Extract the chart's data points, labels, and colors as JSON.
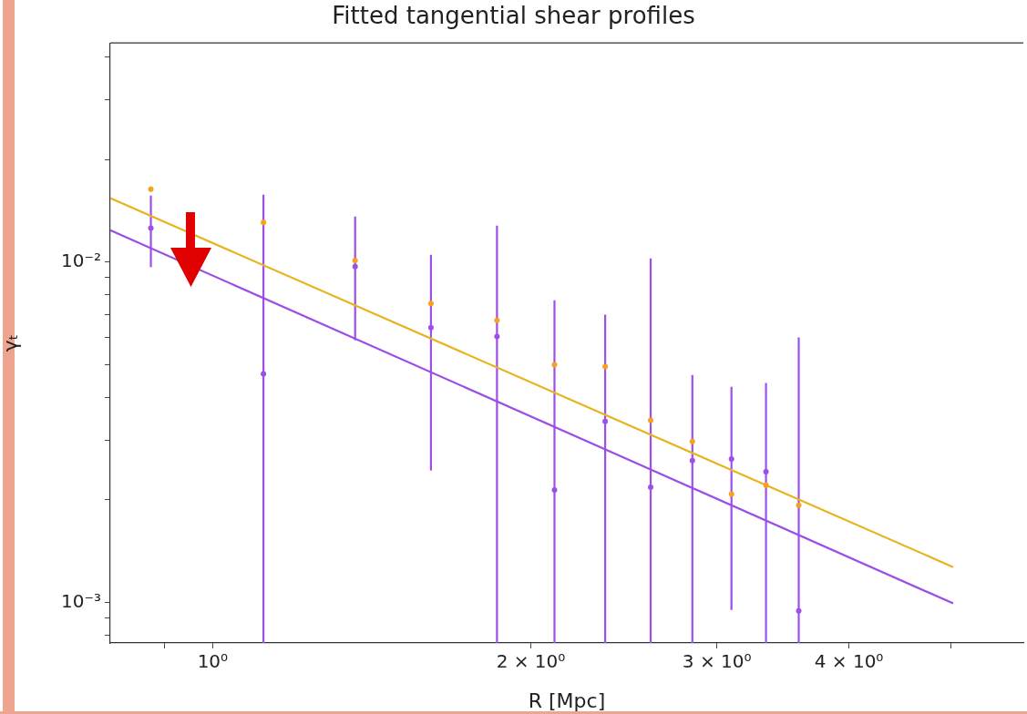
{
  "chart_data": {
    "type": "scatter",
    "title": "Fitted tangential shear profiles",
    "xlabel": "R [Mpc]",
    "ylabel": "γₜ",
    "log": "xy",
    "marker": "circle",
    "xlim": [
      0.8,
      5.85
    ],
    "ylim": [
      0.00076,
      0.044
    ],
    "xticks": [
      {
        "value": 0.9,
        "label": null
      },
      {
        "value": 1,
        "label": "10⁰"
      },
      {
        "value": 2,
        "label": "2 × 10⁰"
      },
      {
        "value": 3,
        "label": "3 × 10⁰"
      },
      {
        "value": 4,
        "label": "4 × 10⁰"
      },
      {
        "value": 5,
        "label": null
      }
    ],
    "yticks": [
      {
        "value": 0.0008,
        "label": null
      },
      {
        "value": 0.0009,
        "label": null
      },
      {
        "value": 0.001,
        "label": "10⁻³"
      },
      {
        "value": 0.002,
        "label": null
      },
      {
        "value": 0.003,
        "label": null
      },
      {
        "value": 0.004,
        "label": null
      },
      {
        "value": 0.005,
        "label": null
      },
      {
        "value": 0.006,
        "label": null
      },
      {
        "value": 0.007,
        "label": null
      },
      {
        "value": 0.008,
        "label": null
      },
      {
        "value": 0.009,
        "label": null
      },
      {
        "value": 0.01,
        "label": "10⁻²"
      },
      {
        "value": 0.02,
        "label": null
      },
      {
        "value": 0.03,
        "label": null
      },
      {
        "value": 0.04,
        "label": null
      }
    ],
    "series": [
      {
        "type": "line",
        "marker": "none",
        "color": "#e8b31e",
        "x": [
          0.8,
          5.02
        ],
        "values": [
          0.0154,
          0.00127
        ]
      },
      {
        "type": "line",
        "marker": "none",
        "color": "#9a4ee6",
        "x": [
          0.8,
          5.02
        ],
        "values": [
          0.0124,
          0.000993
        ]
      },
      {
        "type": "scatter",
        "color": "#9d4fe8",
        "x": [
          0.874,
          1.117,
          1.364,
          1.609,
          1.858,
          2.106,
          2.352,
          2.597,
          2.844,
          3.097,
          3.339,
          3.586
        ],
        "values": [
          0.01258,
          0.00469,
          0.0097,
          0.00642,
          0.00604,
          0.00214,
          0.0034,
          0.00218,
          0.00261,
          0.00264,
          0.00242,
          0.000945
        ],
        "errors": [
          [
            0.00966,
            0.01567
          ],
          [
            0.00076,
            0.01577
          ],
          [
            0.00589,
            0.01361
          ],
          [
            0.00244,
            0.0105
          ],
          [
            0.00076,
            0.01279
          ],
          [
            0.00076,
            0.00772
          ],
          [
            0.00076,
            0.007
          ],
          [
            0.00076,
            0.01025
          ],
          [
            0.00076,
            0.00466
          ],
          [
            0.00095,
            0.0043
          ],
          [
            0.00076,
            0.00441
          ],
          [
            0.00076,
            0.006
          ]
        ]
      },
      {
        "type": "scatter",
        "color": "#f7a21b",
        "x": [
          0.874,
          1.117,
          1.364,
          1.609,
          1.858,
          2.106,
          2.352,
          2.597,
          2.844,
          3.097,
          3.339,
          3.586
        ],
        "values": [
          0.01637,
          0.01306,
          0.0101,
          0.00755,
          0.00674,
          0.00499,
          0.00493,
          0.00343,
          0.00297,
          0.00208,
          0.00221,
          0.00193
        ]
      }
    ]
  }
}
